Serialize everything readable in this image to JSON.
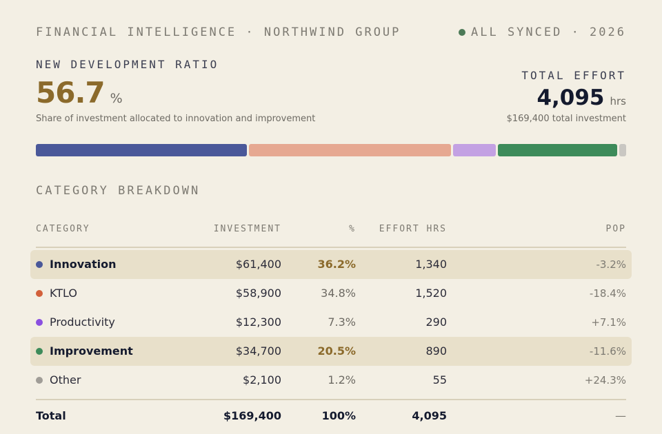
{
  "header": {
    "brand": "FINANCIAL INTELLIGENCE · NORTHWIND GROUP",
    "status": "ALL SYNCED · 2026",
    "status_color": "#4c7a57"
  },
  "ratio": {
    "label": "NEW DEVELOPMENT RATIO",
    "value": "56.7",
    "unit": "%",
    "description": "Share of investment allocated to innovation and improvement"
  },
  "effort": {
    "label": "TOTAL EFFORT",
    "value": "4,095",
    "unit": "hrs",
    "description": "$169,400 total investment"
  },
  "allocation_bar": [
    {
      "category": "Innovation",
      "share": 36.2,
      "color": "#4a5899"
    },
    {
      "category": "KTLO",
      "share": 34.8,
      "color": "#e6a891"
    },
    {
      "category": "Productivity",
      "share": 7.3,
      "color": "#c3a1e3"
    },
    {
      "category": "Improvement",
      "share": 20.5,
      "color": "#3d8b5a"
    },
    {
      "category": "Other",
      "share": 1.2,
      "color": "#c9c7c2"
    }
  ],
  "breakdown": {
    "title": "CATEGORY BREAKDOWN",
    "columns": {
      "category": "CATEGORY",
      "investment": "INVESTMENT",
      "pct": "%",
      "effort": "EFFORT HRS",
      "pop": "POP"
    },
    "rows": [
      {
        "name": "Innovation",
        "investment": "$61,400",
        "pct": "36.2%",
        "effort": "1,340",
        "pop": "-3.2%",
        "dot_color": "#4a5899",
        "highlight": true
      },
      {
        "name": "KTLO",
        "investment": "$58,900",
        "pct": "34.8%",
        "effort": "1,520",
        "pop": "-18.4%",
        "dot_color": "#d2603a",
        "highlight": false
      },
      {
        "name": "Productivity",
        "investment": "$12,300",
        "pct": "7.3%",
        "effort": "290",
        "pop": "+7.1%",
        "dot_color": "#8a4fe0",
        "highlight": false
      },
      {
        "name": "Improvement",
        "investment": "$34,700",
        "pct": "20.5%",
        "effort": "890",
        "pop": "-11.6%",
        "dot_color": "#3d8b5a",
        "highlight": true
      },
      {
        "name": "Other",
        "investment": "$2,100",
        "pct": "1.2%",
        "effort": "55",
        "pop": "+24.3%",
        "dot_color": "#a09d97",
        "highlight": false
      }
    ],
    "total": {
      "label": "Total",
      "investment": "$169,400",
      "pct": "100%",
      "effort": "4,095",
      "pop": "—"
    }
  }
}
